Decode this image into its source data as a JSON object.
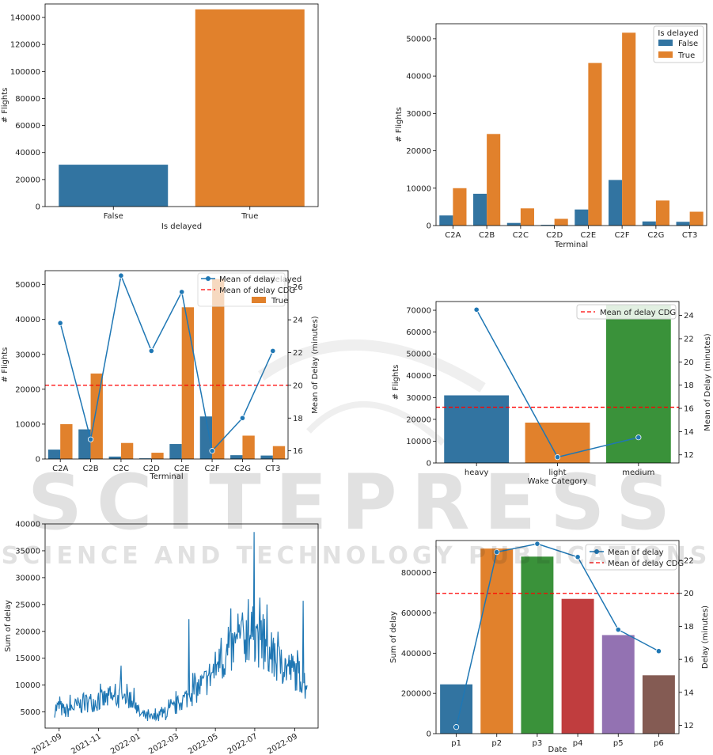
{
  "watermark": {
    "line1": "SCITEPRESS",
    "line2": "SCIENCE AND TECHNOLOGY PUBLICATIONS"
  },
  "colors": {
    "blue": "#3274a1",
    "orange": "#e1812c",
    "green": "#3a923a",
    "red": "#c03d3e",
    "purple": "#9372b2",
    "brown": "#845b53",
    "line": "#1f77b4",
    "mean_line": "#ff0000"
  },
  "chart_data": [
    {
      "id": "c1",
      "type": "bar",
      "xlabel": "Is delayed",
      "ylabel": "# Flights",
      "categories": [
        "False",
        "True"
      ],
      "values": [
        31000,
        146000
      ],
      "bar_colors": [
        "#3274a1",
        "#e1812c"
      ],
      "ylim": [
        0,
        150000
      ],
      "yticks": [
        0,
        20000,
        40000,
        60000,
        80000,
        100000,
        120000,
        140000
      ]
    },
    {
      "id": "c2",
      "type": "bar",
      "xlabel": "Terminal",
      "ylabel": "# Flights",
      "categories": [
        "C2A",
        "C2B",
        "C2C",
        "C2D",
        "C2E",
        "C2F",
        "C2G",
        "CT3"
      ],
      "series": [
        {
          "name": "False",
          "color": "#3274a1",
          "values": [
            2700,
            8500,
            700,
            200,
            4300,
            12200,
            1100,
            1000
          ]
        },
        {
          "name": "True",
          "color": "#e1812c",
          "values": [
            10000,
            24500,
            4600,
            1800,
            43500,
            51600,
            6700,
            3700
          ]
        }
      ],
      "legend": {
        "title": "Is delayed",
        "position": "upper right"
      },
      "ylim": [
        0,
        54000
      ],
      "yticks": [
        0,
        10000,
        20000,
        30000,
        40000,
        50000
      ]
    },
    {
      "id": "c3",
      "type": "bar",
      "xlabel": "Terminal",
      "ylabel": "# Flights",
      "y2label": "Mean of Delay (minutes)",
      "categories": [
        "C2A",
        "C2B",
        "C2C",
        "C2D",
        "C2E",
        "C2F",
        "C2G",
        "CT3"
      ],
      "series": [
        {
          "name": "False",
          "color": "#3274a1",
          "values": [
            2700,
            8500,
            700,
            200,
            4300,
            12200,
            1100,
            1000
          ]
        },
        {
          "name": "True",
          "color": "#e1812c",
          "values": [
            10000,
            24500,
            4600,
            1800,
            43500,
            51600,
            6700,
            3700
          ]
        }
      ],
      "line": {
        "name": "Mean of delay",
        "values": [
          23.8,
          16.7,
          26.7,
          22.1,
          25.7,
          16.0,
          18.0,
          22.1
        ]
      },
      "mean_line": {
        "name": "Mean of delay CDG",
        "value": 20.0
      },
      "legend_labels": [
        "Mean of delay",
        "Mean of delay CDG",
        "True",
        "Is delayed"
      ],
      "ylim": [
        0,
        54000
      ],
      "y2lim": [
        15.5,
        27.0
      ],
      "yticks": [
        0,
        10000,
        20000,
        30000,
        40000,
        50000
      ],
      "y2ticks": [
        16,
        18,
        20,
        22,
        24,
        26
      ]
    },
    {
      "id": "c4",
      "type": "bar",
      "xlabel": "Wake Category",
      "ylabel": "# Flights",
      "y2label": "Mean of Delay (minutes)",
      "categories": [
        "heavy",
        "light",
        "medium"
      ],
      "values": [
        31000,
        18500,
        72500
      ],
      "bar_colors": [
        "#3274a1",
        "#e1812c",
        "#3a923a"
      ],
      "line": {
        "values": [
          24.5,
          11.8,
          13.5
        ]
      },
      "mean_line": {
        "name": "Mean of delay CDG",
        "value": 16.1
      },
      "ylim": [
        0,
        74000
      ],
      "y2lim": [
        11.3,
        25.2
      ],
      "yticks": [
        0,
        10000,
        20000,
        30000,
        40000,
        50000,
        60000,
        70000
      ],
      "y2ticks": [
        12,
        14,
        16,
        18,
        20,
        22,
        24
      ]
    },
    {
      "id": "c5",
      "type": "line",
      "ylabel": "Sum of delay",
      "x_start": "2021-08-25",
      "x_end": "2022-09-20",
      "xticks": [
        "2021-09",
        "2021-11",
        "2022-01",
        "2022-03",
        "2022-05",
        "2022-07",
        "2022-09"
      ],
      "ylim": [
        2000,
        40000
      ],
      "yticks": [
        5000,
        10000,
        15000,
        20000,
        25000,
        30000,
        35000,
        40000
      ],
      "anchors": [
        [
          "2021-08-25",
          5500
        ],
        [
          "2021-09-01",
          6000
        ],
        [
          "2021-09-10",
          5000
        ],
        [
          "2021-09-20",
          5800
        ],
        [
          "2021-10-01",
          6200
        ],
        [
          "2021-10-15",
          6800
        ],
        [
          "2021-11-01",
          7000
        ],
        [
          "2021-11-15",
          7500
        ],
        [
          "2021-12-01",
          7500
        ],
        [
          "2021-12-15",
          8000
        ],
        [
          "2021-12-25",
          6500
        ],
        [
          "2022-01-05",
          4500
        ],
        [
          "2022-01-20",
          3800
        ],
        [
          "2022-02-01",
          4000
        ],
        [
          "2022-02-15",
          4800
        ],
        [
          "2022-03-01",
          6000
        ],
        [
          "2022-03-15",
          7500
        ],
        [
          "2022-04-01",
          9000
        ],
        [
          "2022-04-15",
          10500
        ],
        [
          "2022-05-01",
          13000
        ],
        [
          "2022-05-15",
          15000
        ],
        [
          "2022-06-01",
          17000
        ],
        [
          "2022-06-15",
          19000
        ],
        [
          "2022-07-01",
          19500
        ],
        [
          "2022-07-15",
          16500
        ],
        [
          "2022-08-01",
          14500
        ],
        [
          "2022-08-15",
          13500
        ],
        [
          "2022-09-01",
          12500
        ],
        [
          "2022-09-15",
          11000
        ],
        [
          "2022-09-20",
          8500
        ]
      ],
      "spikes": [
        [
          "2021-12-06",
          13600
        ],
        [
          "2022-03-21",
          22300
        ],
        [
          "2022-05-10",
          18800
        ],
        [
          "2022-06-21",
          26000
        ],
        [
          "2022-06-30",
          38500
        ],
        [
          "2022-07-20",
          25000
        ],
        [
          "2022-09-05",
          16500
        ],
        [
          "2022-09-14",
          25700
        ]
      ]
    },
    {
      "id": "c6",
      "type": "bar",
      "xlabel": "Date",
      "ylabel": "Sum of delay",
      "y2label": "Delay (minutes)",
      "categories": [
        "p1",
        "p2",
        "p3",
        "p4",
        "p5",
        "p6"
      ],
      "values": [
        245000,
        920000,
        880000,
        670000,
        490000,
        290000
      ],
      "bar_colors": [
        "#3274a1",
        "#e1812c",
        "#3a923a",
        "#c03d3e",
        "#9372b2",
        "#845b53"
      ],
      "line": {
        "name": "Mean of delay",
        "values": [
          11.9,
          22.5,
          23.0,
          22.2,
          17.8,
          16.5
        ]
      },
      "mean_line": {
        "name": "Mean of delay CDG",
        "value": 20.0
      },
      "ylim": [
        0,
        960000
      ],
      "y2lim": [
        11.5,
        23.2
      ],
      "yticks": [
        0,
        200000,
        400000,
        600000,
        800000
      ],
      "y2ticks": [
        12,
        14,
        16,
        18,
        20,
        22
      ]
    }
  ]
}
